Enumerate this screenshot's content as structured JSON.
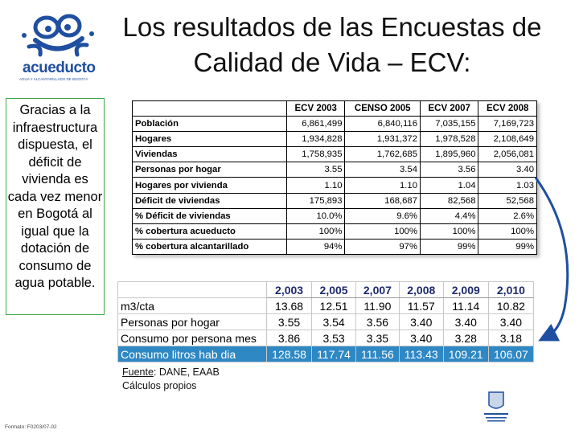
{
  "logo": {
    "brand": "acueducto",
    "tagline": "AGUA Y ALCANTARILLADO DE BOGOTÁ",
    "icon": "frog-icon"
  },
  "title": {
    "line1": "Los resultados de las Encuestas de",
    "line2": "Calidad de Vida – ECV:"
  },
  "note": "Gracias a la infraestructura dispuesta, el déficit de vivienda es cada vez menor en Bogotá al igual que la dotación de consumo de agua potable.",
  "table1": {
    "headers": [
      "ECV 2003",
      "CENSO 2005",
      "ECV 2007",
      "ECV 2008"
    ],
    "rows": [
      {
        "label": "Población",
        "values": [
          "6,861,499",
          "6,840,116",
          "7,035,155",
          "7,169,723"
        ]
      },
      {
        "label": "Hogares",
        "values": [
          "1,934,828",
          "1,931,372",
          "1,978,528",
          "2,108,649"
        ]
      },
      {
        "label": "Viviendas",
        "values": [
          "1,758,935",
          "1,762,685",
          "1,895,960",
          "2,056,081"
        ]
      },
      {
        "label": "Personas por hogar",
        "values": [
          "3.55",
          "3.54",
          "3.56",
          "3.40"
        ]
      },
      {
        "label": "Hogares por vivienda",
        "values": [
          "1.10",
          "1.10",
          "1.04",
          "1.03"
        ]
      },
      {
        "label": "Déficit de viviendas",
        "values": [
          "175,893",
          "168,687",
          "82,568",
          "52,568"
        ]
      },
      {
        "label": "% Déficit de viviendas",
        "values": [
          "10.0%",
          "9.6%",
          "4.4%",
          "2.6%"
        ]
      },
      {
        "label": "% cobertura acueducto",
        "values": [
          "100%",
          "100%",
          "100%",
          "100%"
        ]
      },
      {
        "label": "% cobertura alcantarillado",
        "values": [
          "94%",
          "97%",
          "99%",
          "99%"
        ]
      }
    ]
  },
  "table2": {
    "headers": [
      "2,003",
      "2,005",
      "2,007",
      "2,008",
      "2,009",
      "2,010"
    ],
    "rows": [
      {
        "label": "m3/cta",
        "values": [
          "13.68",
          "12.51",
          "11.90",
          "11.57",
          "11.14",
          "10.82"
        ]
      },
      {
        "label": "Personas por hogar",
        "values": [
          "3.55",
          "3.54",
          "3.56",
          "3.40",
          "3.40",
          "3.40"
        ]
      },
      {
        "label": "Consumo por persona mes",
        "values": [
          "3.86",
          "3.53",
          "3.35",
          "3.40",
          "3.28",
          "3.18"
        ]
      },
      {
        "label": "Consumo litros hab dia",
        "values": [
          "128.58",
          "117.74",
          "111.56",
          "113.43",
          "109.21",
          "106.07"
        ]
      }
    ]
  },
  "source": {
    "label": "Fuente",
    "text": ": DANE, EAAB",
    "line2": "Cálculos propios"
  },
  "footer": "Formato: F0203/07-02",
  "colors": {
    "brand_blue": "#1f4fa0",
    "highlight_row": "#2e88c4",
    "note_border": "#3da84a"
  }
}
